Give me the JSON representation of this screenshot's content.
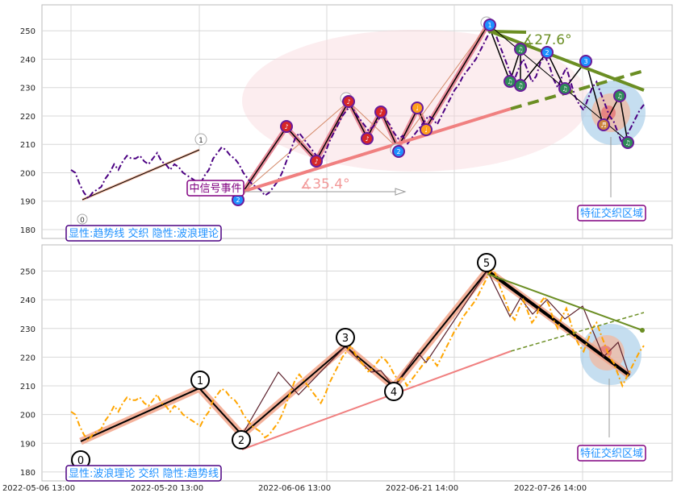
{
  "chart_data": [
    {
      "type": "line",
      "ylim": [
        178,
        258
      ],
      "yticks": [
        180,
        190,
        200,
        210,
        220,
        230,
        240,
        250
      ],
      "xticks": [
        "2022-05-06 13:00",
        "2022-05-20 13:00",
        "2022-06-06 13:00",
        "2022-06-21 14:00",
        "2022-07-26 14:00"
      ],
      "grid": true,
      "colors": {
        "price": "#4b0082",
        "wave": "#000000",
        "wave_shadow": "#e8a0a0",
        "trend_support": "#f08080",
        "trend_resist": "#6b8e23",
        "signal_box": "#800080",
        "info_box": "#4b0082",
        "info_text": "#1e90ff"
      },
      "series": [
        {
          "values": [
            201,
            200,
            196,
            193,
            191,
            193,
            194,
            195,
            198,
            200,
            203,
            201,
            204,
            206,
            205,
            205,
            206,
            204,
            203,
            205,
            207,
            204,
            203,
            201,
            203,
            202,
            200,
            199,
            198,
            197,
            196,
            199,
            201,
            205,
            207,
            209,
            208,
            206,
            205,
            203,
            200,
            198,
            196,
            195,
            194,
            192,
            193,
            195,
            197,
            200,
            204,
            208,
            212,
            214,
            212,
            210,
            208,
            206,
            204,
            207,
            211,
            214,
            217,
            220,
            222,
            224,
            221,
            219,
            217,
            215,
            216,
            218,
            220,
            219,
            217,
            214,
            212,
            213,
            210,
            212,
            214,
            216,
            218,
            220,
            219,
            217,
            220,
            223,
            226,
            229,
            231,
            234,
            236,
            238,
            240,
            243,
            246,
            249,
            251,
            247,
            243,
            239,
            235,
            233,
            237,
            240,
            236,
            232,
            234,
            239,
            241,
            238,
            233,
            230,
            234,
            237,
            232,
            227,
            224,
            222,
            226,
            230,
            232,
            228,
            224,
            220,
            218,
            214,
            210,
            213,
            216,
            219,
            222,
            224
          ]
        }
      ],
      "wave_points": [
        [
          191,
          196
        ],
        [
          187,
          218
        ],
        [
          233,
          227
        ],
        [
          256,
          219
        ],
        [
          280,
          216
        ],
        [
          305,
          223
        ],
        [
          332,
          238
        ]
      ],
      "wave_labels": [
        "0",
        "1",
        "2",
        "3",
        "4",
        "5"
      ],
      "event_label": "中信号事件",
      "angle_support": "∡35.4°",
      "angle_resist": "∡27.6°",
      "zone_label": "特征交织区域",
      "info_label": "显性:趋势线 交织 隐性:波浪理论",
      "markers": [
        {
          "label": "1",
          "color": "#1e90ff"
        },
        {
          "label": "♪",
          "color": "#d62728"
        },
        {
          "label": "♫",
          "color": "#2e8b57"
        },
        {
          "label": "♩",
          "color": "#ff9f1c"
        },
        {
          "label": "♬",
          "color": "#cd853f"
        },
        {
          "label": "2",
          "color": "#1e90ff"
        },
        {
          "label": "3",
          "color": "#1e90ff"
        }
      ]
    },
    {
      "type": "line",
      "ylim": [
        178,
        258
      ],
      "yticks": [
        180,
        190,
        200,
        210,
        220,
        230,
        240,
        250
      ],
      "xticks": [
        "2022-05-06 13:00",
        "2022-05-20 13:00",
        "2022-06-06 13:00",
        "2022-06-21 14:00",
        "2022-07-26 14:00"
      ],
      "grid": true,
      "colors": {
        "price": "#ffa500",
        "wave": "#000000",
        "wave_shadow": "#f08060",
        "trend_support": "#f08080",
        "trend_resist": "#6b8e23",
        "signal_box": "#800080",
        "info_box": "#4b0082",
        "info_text": "#1e90ff"
      },
      "series": [
        {
          "values": [
            201,
            200,
            196,
            193,
            191,
            193,
            194,
            195,
            198,
            200,
            203,
            201,
            204,
            206,
            205,
            205,
            206,
            204,
            203,
            205,
            207,
            204,
            203,
            201,
            203,
            202,
            200,
            199,
            198,
            197,
            196,
            199,
            201,
            205,
            207,
            209,
            208,
            206,
            205,
            203,
            200,
            198,
            196,
            195,
            194,
            192,
            193,
            195,
            197,
            200,
            204,
            208,
            212,
            214,
            212,
            210,
            208,
            206,
            204,
            207,
            211,
            214,
            217,
            220,
            222,
            224,
            221,
            219,
            217,
            215,
            216,
            218,
            220,
            219,
            217,
            214,
            212,
            213,
            210,
            212,
            214,
            216,
            218,
            220,
            219,
            217,
            220,
            223,
            226,
            229,
            231,
            234,
            236,
            238,
            240,
            243,
            246,
            249,
            251,
            247,
            243,
            239,
            235,
            233,
            237,
            240,
            236,
            232,
            234,
            239,
            241,
            238,
            233,
            230,
            234,
            237,
            232,
            227,
            224,
            222,
            226,
            230,
            232,
            228,
            224,
            220,
            218,
            214,
            210,
            213,
            216,
            219,
            222,
            224
          ]
        }
      ],
      "wave_labels": [
        "0",
        "1",
        "2",
        "3",
        "4",
        "5"
      ],
      "zone_label": "特征交织区域",
      "info_label": "显性:波浪理论 交织 隐性:趋势线"
    }
  ]
}
